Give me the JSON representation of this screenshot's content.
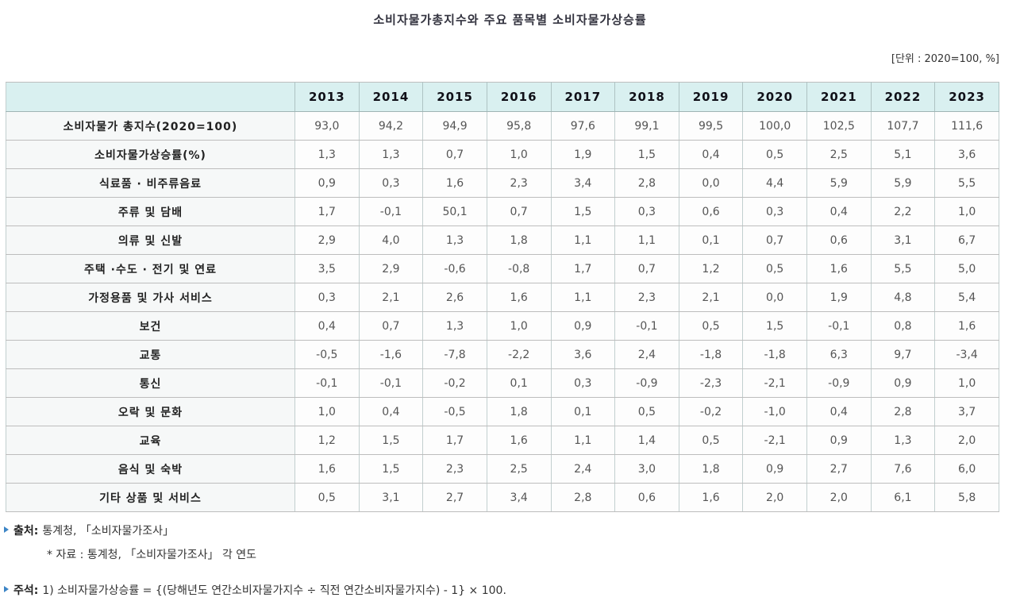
{
  "title": "소비자물가총지수와 주요 품목별 소비자물가상승률",
  "unit_note": "[단위 : 2020=100, %]",
  "colors": {
    "header_bg": "#d9f0f0",
    "bullet_blue": "#3d85c6",
    "grid_line": "#c2cfcf"
  },
  "table": {
    "year_columns": [
      "2013",
      "2014",
      "2015",
      "2016",
      "2017",
      "2018",
      "2019",
      "2020",
      "2021",
      "2022",
      "2023"
    ],
    "rows": [
      {
        "label": "소비자물가 총지수(2020=100)",
        "values": [
          "93,0",
          "94,2",
          "94,9",
          "95,8",
          "97,6",
          "99,1",
          "99,5",
          "100,0",
          "102,5",
          "107,7",
          "111,6"
        ]
      },
      {
        "label": "소비자물가상승률(%)",
        "values": [
          "1,3",
          "1,3",
          "0,7",
          "1,0",
          "1,9",
          "1,5",
          "0,4",
          "0,5",
          "2,5",
          "5,1",
          "3,6"
        ]
      },
      {
        "label": "식료품 · 비주류음료",
        "values": [
          "0,9",
          "0,3",
          "1,6",
          "2,3",
          "3,4",
          "2,8",
          "0,0",
          "4,4",
          "5,9",
          "5,9",
          "5,5"
        ]
      },
      {
        "label": "주류 및 담배",
        "values": [
          "1,7",
          "-0,1",
          "50,1",
          "0,7",
          "1,5",
          "0,3",
          "0,6",
          "0,3",
          "0,4",
          "2,2",
          "1,0"
        ]
      },
      {
        "label": "의류 및 신발",
        "values": [
          "2,9",
          "4,0",
          "1,3",
          "1,8",
          "1,1",
          "1,1",
          "0,1",
          "0,7",
          "0,6",
          "3,1",
          "6,7"
        ]
      },
      {
        "label": "주택 ·수도 · 전기 및 연료",
        "values": [
          "3,5",
          "2,9",
          "-0,6",
          "-0,8",
          "1,7",
          "0,7",
          "1,2",
          "0,5",
          "1,6",
          "5,5",
          "5,0"
        ]
      },
      {
        "label": "가정용품 및 가사 서비스",
        "values": [
          "0,3",
          "2,1",
          "2,6",
          "1,6",
          "1,1",
          "2,3",
          "2,1",
          "0,0",
          "1,9",
          "4,8",
          "5,4"
        ]
      },
      {
        "label": "보건",
        "values": [
          "0,4",
          "0,7",
          "1,3",
          "1,0",
          "0,9",
          "-0,1",
          "0,5",
          "1,5",
          "-0,1",
          "0,8",
          "1,6"
        ]
      },
      {
        "label": "교통",
        "values": [
          "-0,5",
          "-1,6",
          "-7,8",
          "-2,2",
          "3,6",
          "2,4",
          "-1,8",
          "-1,8",
          "6,3",
          "9,7",
          "-3,4"
        ]
      },
      {
        "label": "통신",
        "values": [
          "-0,1",
          "-0,1",
          "-0,2",
          "0,1",
          "0,3",
          "-0,9",
          "-2,3",
          "-2,1",
          "-0,9",
          "0,9",
          "1,0"
        ]
      },
      {
        "label": "오락 및 문화",
        "values": [
          "1,0",
          "0,4",
          "-0,5",
          "1,8",
          "0,1",
          "0,5",
          "-0,2",
          "-1,0",
          "0,4",
          "2,8",
          "3,7"
        ]
      },
      {
        "label": "교육",
        "values": [
          "1,2",
          "1,5",
          "1,7",
          "1,6",
          "1,1",
          "1,4",
          "0,5",
          "-2,1",
          "0,9",
          "1,3",
          "2,0"
        ]
      },
      {
        "label": "음식 및 숙박",
        "values": [
          "1,6",
          "1,5",
          "2,3",
          "2,5",
          "2,4",
          "3,0",
          "1,8",
          "0,9",
          "2,7",
          "7,6",
          "6,0"
        ]
      },
      {
        "label": "기타 상품 및 서비스",
        "values": [
          "0,5",
          "3,1",
          "2,7",
          "3,4",
          "2,8",
          "0,6",
          "1,6",
          "2,0",
          "2,0",
          "6,1",
          "5,8"
        ]
      }
    ]
  },
  "footnotes": {
    "source_label": "출처:",
    "source_text": "통계청, 「소비자물가조사」",
    "source_sub": "* 자료 : 통계청, 「소비자물가조사」 각 연도",
    "remark_label": "주석:",
    "remark_text": "1) 소비자물가상승률 = {(당해년도 연간소비자물가지수 ÷ 직전 연간소비자물가지수) - 1} × 100."
  }
}
